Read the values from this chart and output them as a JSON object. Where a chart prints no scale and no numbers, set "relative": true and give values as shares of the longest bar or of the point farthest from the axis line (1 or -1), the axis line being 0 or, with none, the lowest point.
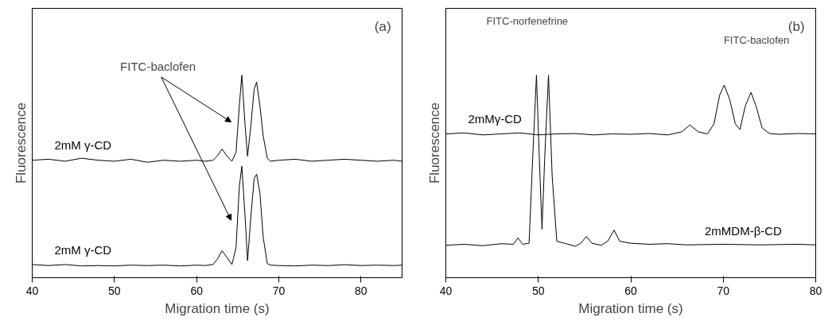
{
  "chart_data": [
    {
      "type": "line",
      "relative": true,
      "xlabel": "Migration time (s)",
      "ylabel": "Fluorescence",
      "xlim": [
        40,
        85
      ],
      "xticks": [
        40,
        50,
        60,
        70,
        80
      ],
      "legend": false,
      "grid": false,
      "annotations": [
        "(a)",
        "FITC-baclofen"
      ],
      "series": [
        {
          "name": "2mM γ-CD",
          "color": "#000000",
          "x": [
            40,
            42,
            44,
            46,
            48,
            50,
            52,
            54,
            56,
            58,
            60,
            61,
            62,
            62.5,
            63.1,
            63.7,
            64.3,
            64.8,
            65.2,
            65.5,
            65.9,
            66.2,
            66.6,
            67.0,
            67.3,
            67.7,
            68.1,
            68.6,
            69,
            70,
            72,
            74,
            76,
            78,
            80,
            82,
            84,
            85
          ],
          "values": [
            0.58,
            0.585,
            0.575,
            0.59,
            0.58,
            0.575,
            0.585,
            0.57,
            0.58,
            0.575,
            0.58,
            0.575,
            0.58,
            0.6,
            0.635,
            0.6,
            0.575,
            0.62,
            0.85,
            1.0,
            0.75,
            0.6,
            0.75,
            0.93,
            0.966,
            0.85,
            0.7,
            0.59,
            0.575,
            0.58,
            0.585,
            0.575,
            0.58,
            0.585,
            0.58,
            0.575,
            0.58,
            0.575
          ]
        },
        {
          "name": "2mM γ-CD",
          "color": "#000000",
          "x": [
            40,
            42,
            44,
            46,
            48,
            50,
            52,
            54,
            56,
            58,
            60,
            61,
            62,
            62.5,
            63.1,
            63.7,
            64.3,
            64.8,
            65.2,
            65.5,
            65.9,
            66.2,
            66.6,
            67.0,
            67.3,
            67.7,
            68.1,
            68.6,
            69,
            70,
            72,
            74,
            76,
            78,
            80,
            82,
            84,
            85
          ],
          "values": [
            0.065,
            0.06,
            0.065,
            0.058,
            0.06,
            0.058,
            0.062,
            0.06,
            0.062,
            0.058,
            0.062,
            0.06,
            0.065,
            0.09,
            0.133,
            0.1,
            0.065,
            0.15,
            0.45,
            0.551,
            0.3,
            0.084,
            0.3,
            0.49,
            0.511,
            0.42,
            0.2,
            0.07,
            0.062,
            0.06,
            0.058,
            0.062,
            0.06,
            0.064,
            0.06,
            0.062,
            0.06,
            0.062
          ]
        }
      ]
    },
    {
      "type": "line",
      "relative": true,
      "xlabel": "Migration time (s)",
      "ylabel": "Fluorescence",
      "xlim": [
        40,
        80
      ],
      "xticks": [
        40,
        50,
        60,
        70,
        80
      ],
      "legend": false,
      "grid": false,
      "annotations": [
        "(b)",
        "FITC-norfenefrine",
        "FITC-baclofen"
      ],
      "series": [
        {
          "name": "2mMγ-CD",
          "color": "#000000",
          "x": [
            40,
            42,
            44,
            46,
            48,
            50,
            52,
            54,
            56,
            58,
            60,
            62,
            64,
            65.5,
            66.4,
            67.3,
            68.3,
            69.0,
            69.6,
            70.1,
            70.7,
            71.3,
            71.8,
            72.4,
            73.0,
            73.6,
            74.2,
            75,
            76,
            78,
            80
          ],
          "values": [
            0.71,
            0.715,
            0.705,
            0.71,
            0.715,
            0.705,
            0.71,
            0.712,
            0.705,
            0.71,
            0.708,
            0.712,
            0.705,
            0.72,
            0.754,
            0.72,
            0.71,
            0.76,
            0.9,
            0.951,
            0.88,
            0.76,
            0.732,
            0.85,
            0.915,
            0.84,
            0.74,
            0.712,
            0.708,
            0.712,
            0.71
          ]
        },
        {
          "name": "2mMDM-β-CD",
          "color": "#000000",
          "x": [
            40,
            42,
            44,
            46,
            47.3,
            47.8,
            48.3,
            49.0,
            49.4,
            49.8,
            50.1,
            50.4,
            50.7,
            51.1,
            51.5,
            52.0,
            53,
            54,
            54.6,
            55.2,
            55.8,
            56.8,
            57.5,
            58.2,
            58.8,
            60,
            62,
            64,
            66,
            70,
            74,
            78,
            80
          ],
          "values": [
            0.16,
            0.165,
            0.158,
            0.168,
            0.165,
            0.197,
            0.165,
            0.17,
            0.6,
            1.0,
            0.6,
            0.239,
            0.6,
            1.0,
            0.5,
            0.18,
            0.168,
            0.155,
            0.17,
            0.204,
            0.17,
            0.16,
            0.18,
            0.235,
            0.18,
            0.17,
            0.165,
            0.168,
            0.162,
            0.165,
            0.162,
            0.165,
            0.162
          ]
        }
      ]
    }
  ]
}
